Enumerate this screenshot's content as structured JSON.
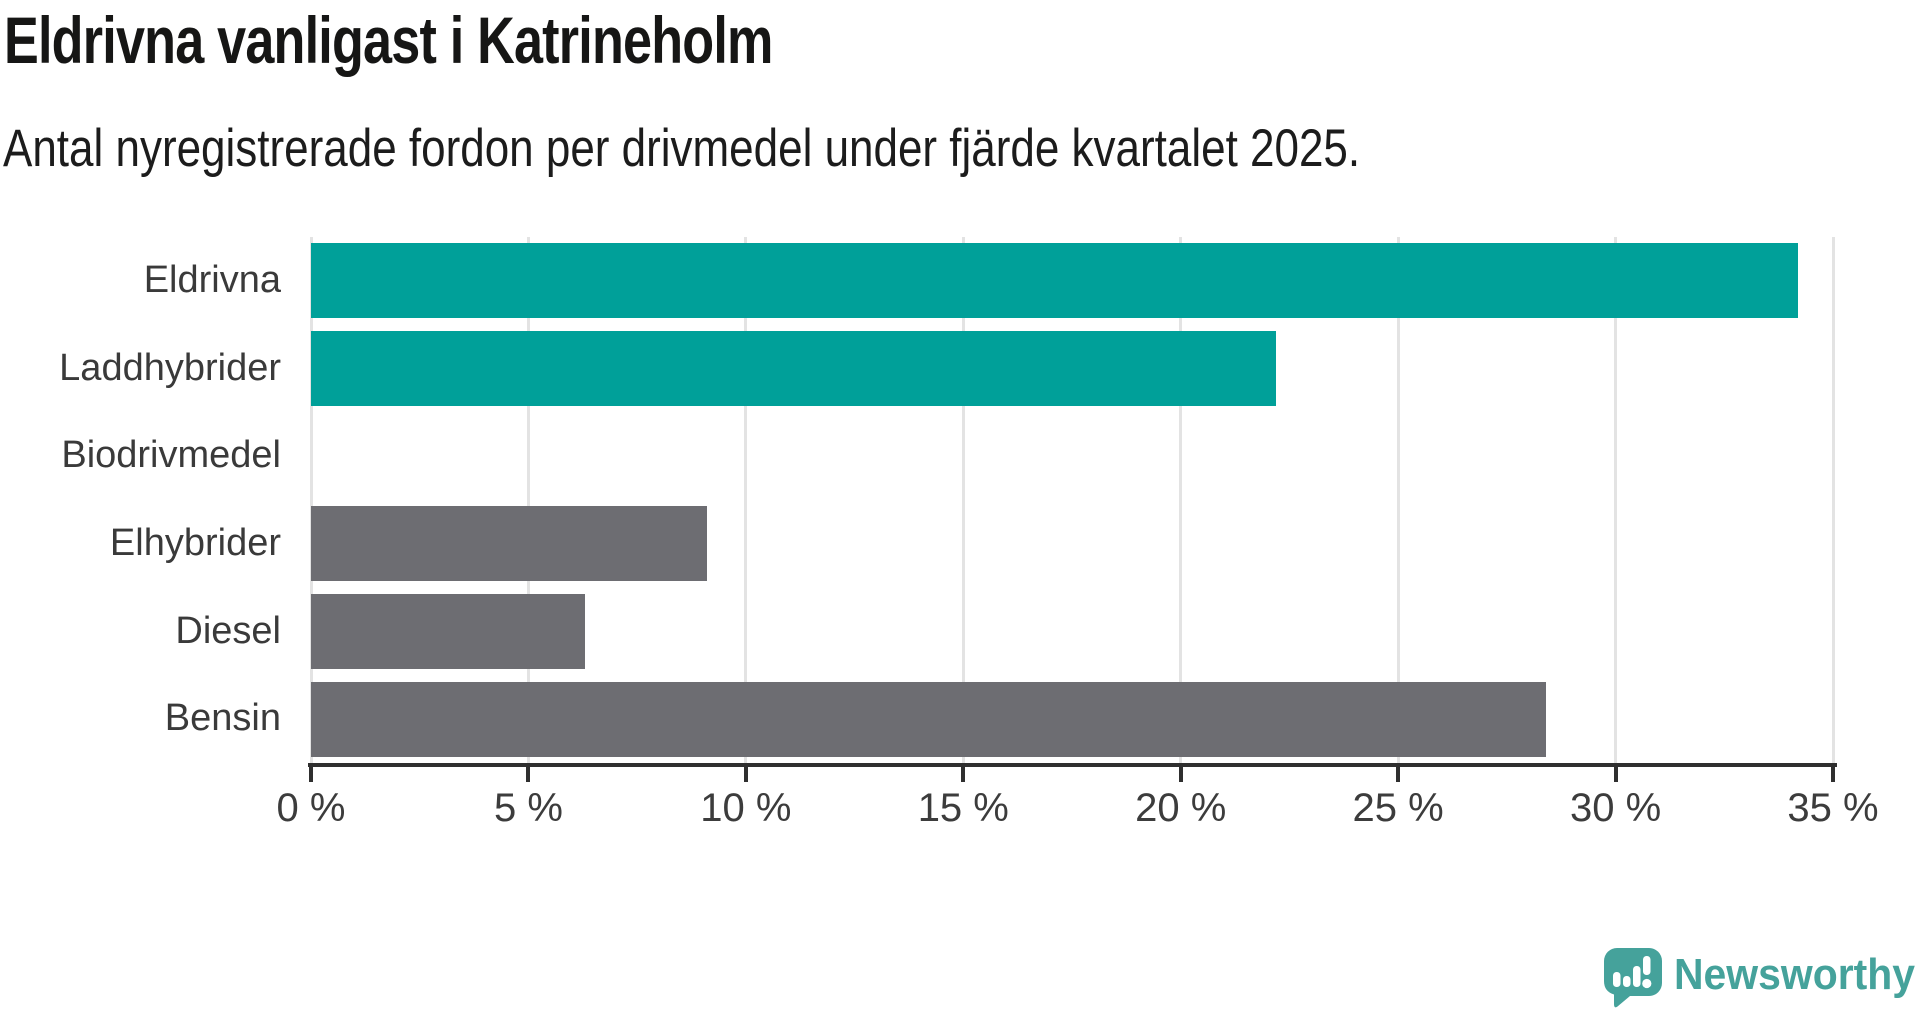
{
  "header": {
    "title": "Eldrivna vanligast i Katrineholm",
    "subtitle": "Antal nyregistrerade fordon per drivmedel under fjärde kvartalet 2025."
  },
  "chart_data": {
    "type": "bar",
    "orientation": "horizontal",
    "title": "Eldrivna vanligast i Katrineholm",
    "subtitle": "Antal nyregistrerade fordon per drivmedel under fjärde kvartalet 2025.",
    "categories": [
      "Eldrivna",
      "Laddhybrider",
      "Biodrivmedel",
      "Elhybrider",
      "Diesel",
      "Bensin"
    ],
    "values": [
      34.2,
      22.2,
      0,
      9.1,
      6.3,
      28.4
    ],
    "unit": "%",
    "bar_colors": [
      "#00a099",
      "#00a099",
      "#00a099",
      "#6d6d72",
      "#6d6d72",
      "#6d6d72"
    ],
    "xlim": [
      0,
      35
    ],
    "x_ticks": [
      {
        "value": 0,
        "label": "0 %"
      },
      {
        "value": 5,
        "label": "5 %"
      },
      {
        "value": 10,
        "label": "10 %"
      },
      {
        "value": 15,
        "label": "15 %"
      },
      {
        "value": 20,
        "label": "20 %"
      },
      {
        "value": 25,
        "label": "25 %"
      },
      {
        "value": 30,
        "label": "30 %"
      },
      {
        "value": 35,
        "label": "35 %"
      }
    ],
    "grid": "vertical-gridlines-on",
    "legend": "none",
    "xlabel": "",
    "ylabel": ""
  },
  "branding": {
    "logo_text": "Newsworthy",
    "logo_icon": "newsworthy-speech-bubble-bar-chart-icon",
    "logo_color": "#45a29b"
  },
  "colors": {
    "highlight": "#00a099",
    "muted": "#6d6d72",
    "gridline": "#e3e3e3",
    "axis": "#2f2f2f",
    "title_text": "#161615",
    "subtitle_text": "#1c1c1c",
    "label_text": "#3a3a3a"
  }
}
